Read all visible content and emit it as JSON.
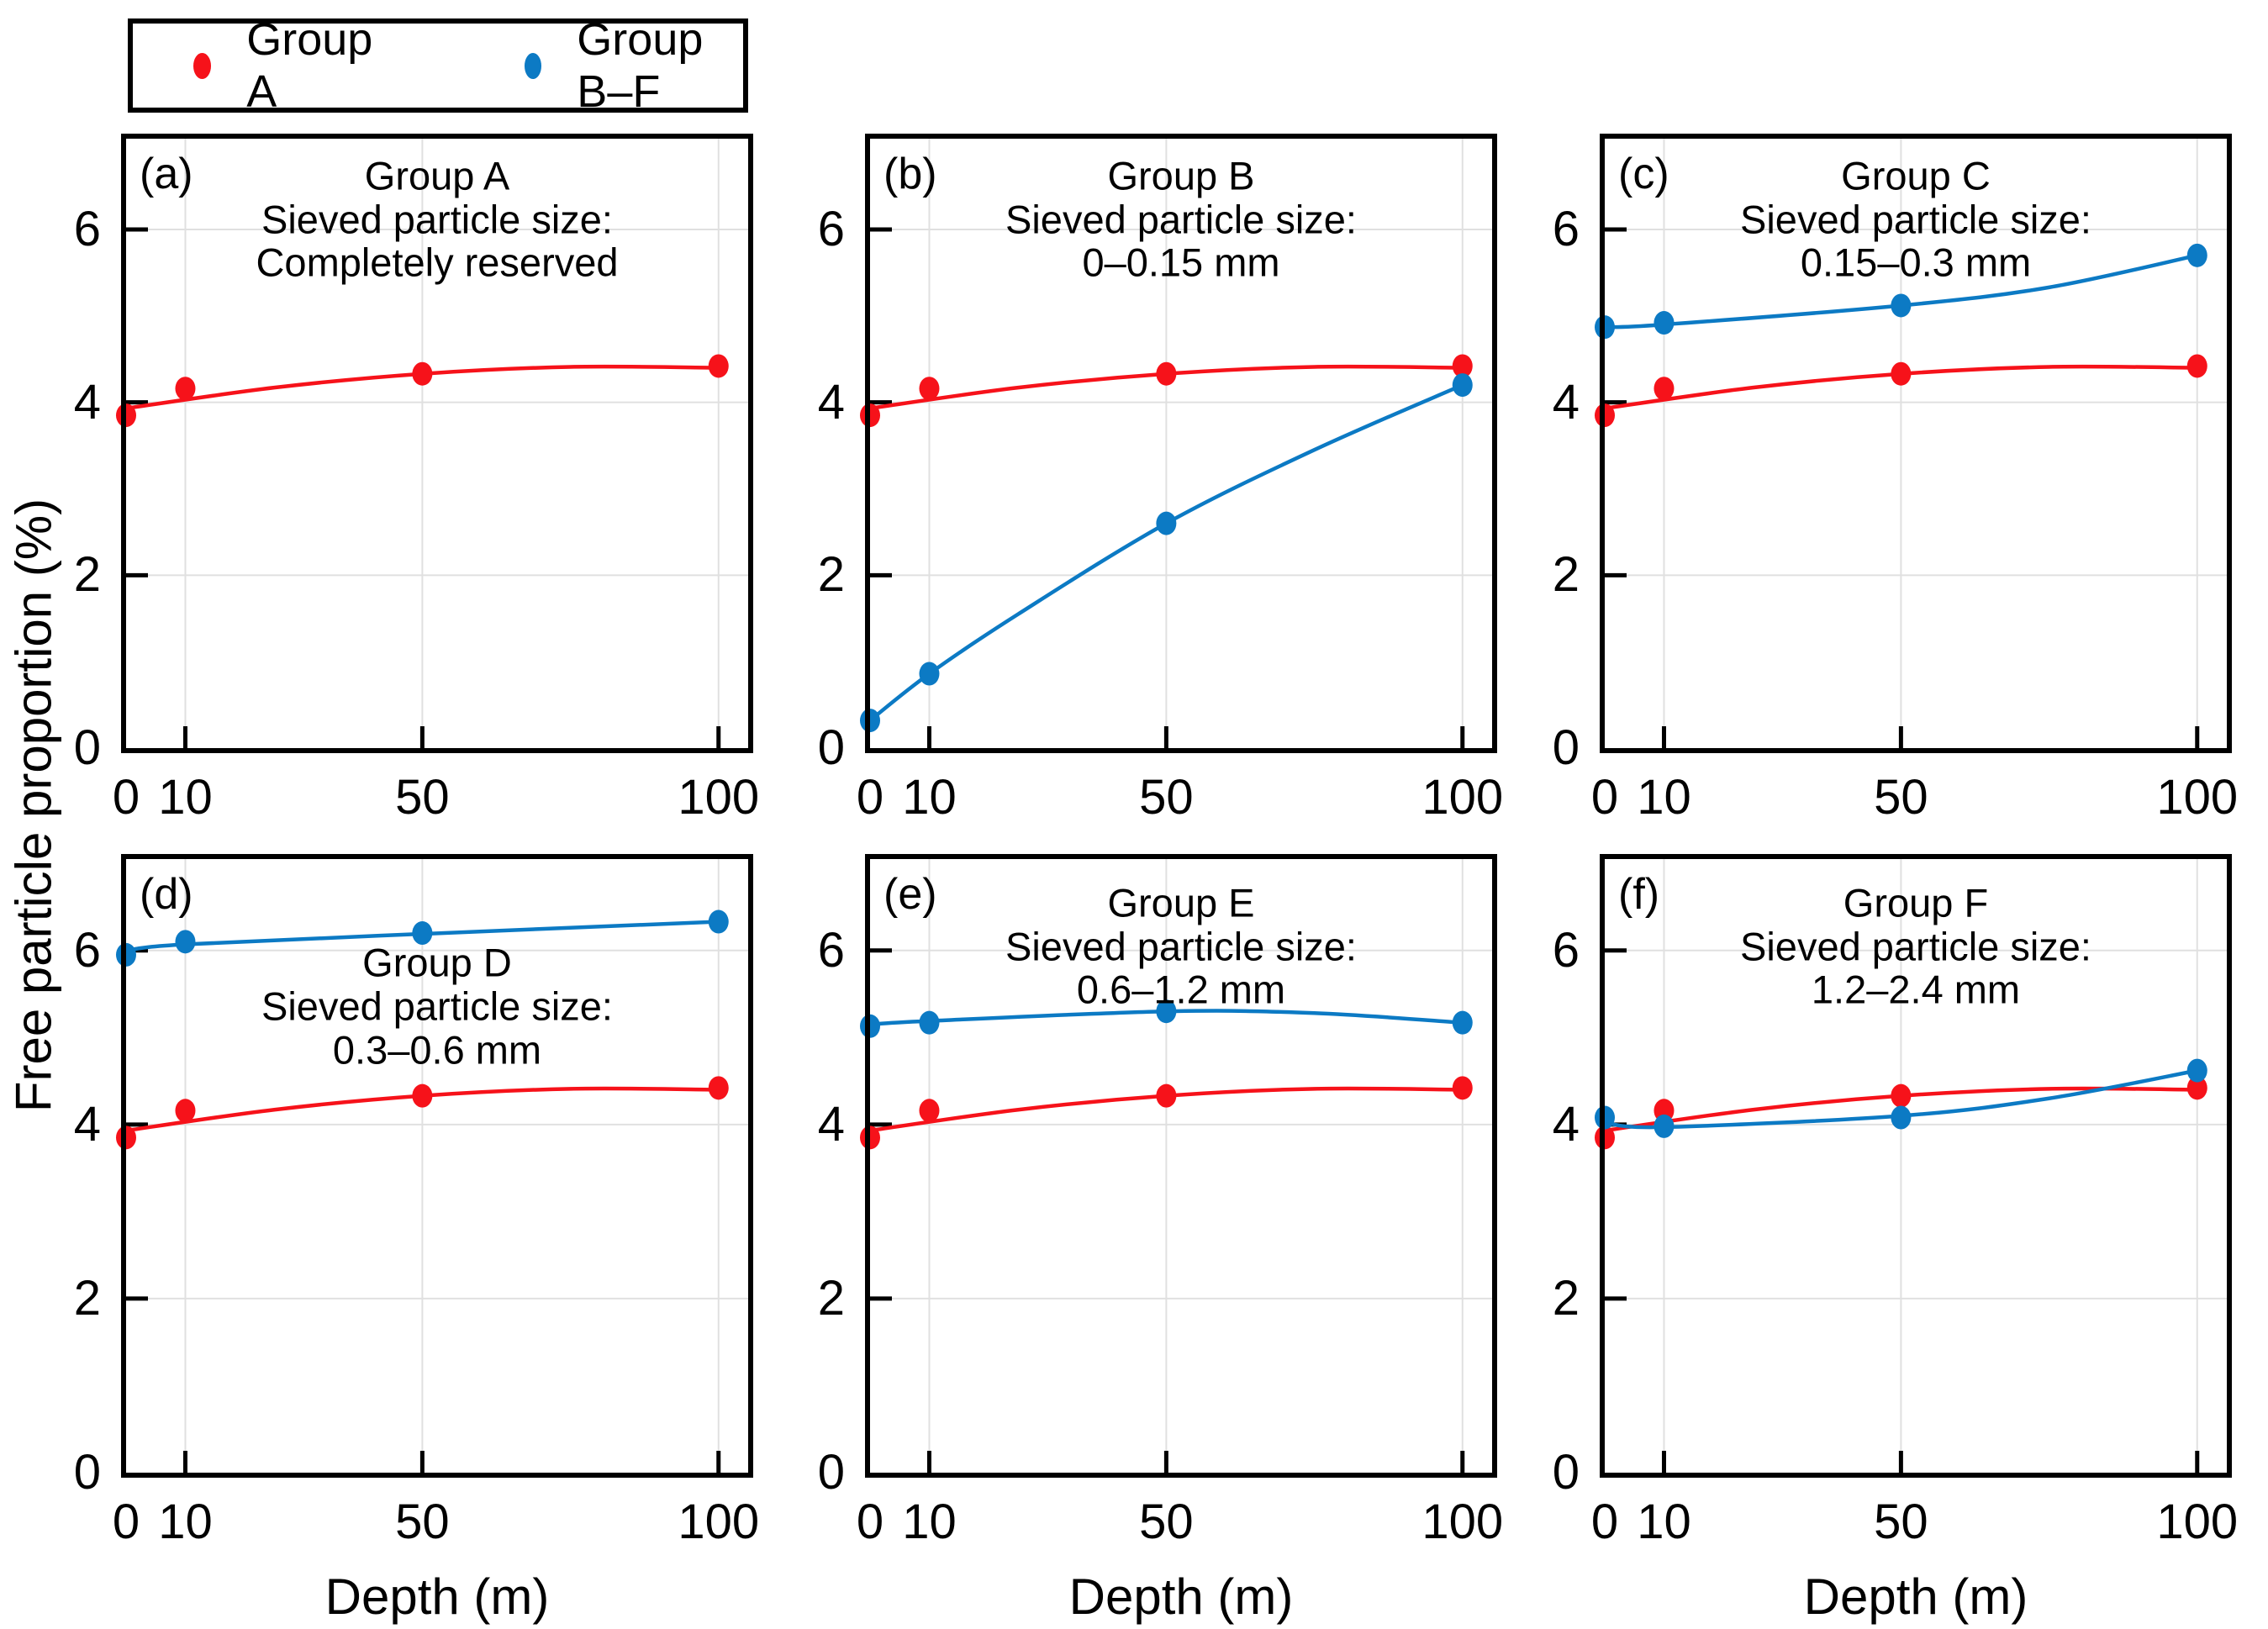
{
  "figure": {
    "background": "#ffffff",
    "y_axis_label": "Free particle proportion (%)",
    "x_axis_label": "Depth (m)"
  },
  "legend": {
    "items": [
      {
        "label": "Group A",
        "color": "#f6121a"
      },
      {
        "label": "Group B–F",
        "color": "#0c7ac4"
      }
    ]
  },
  "chart_data": {
    "type": "line",
    "x_label": "Depth (m)",
    "y_label": "Free particle proportion (%)",
    "x_ticks": [
      0,
      10,
      50,
      100
    ],
    "y_ticks": [
      0,
      2,
      4,
      6
    ],
    "x_range": [
      0,
      105
    ],
    "y_range": [
      0,
      7.05
    ],
    "grid": true,
    "legend_position": "top-left",
    "series_colors": {
      "group_a": "#f6121a",
      "group_bf": "#0c7ac4"
    },
    "panels": [
      {
        "id": "a",
        "label": "(a)",
        "row": 0,
        "col": 0,
        "title_lines": [
          "Group A",
          "Sieved particle size:",
          "Completely reserved"
        ],
        "title_first_line_y": 6.62,
        "title_line_step": 0.5,
        "x_axis_title": false,
        "series": [
          {
            "name": "Group A",
            "color_key": "group_a",
            "points": [
              [
                0,
                3.85
              ],
              [
                10,
                4.16
              ],
              [
                50,
                4.33
              ],
              [
                100,
                4.42
              ]
            ],
            "curve": [
              [
                0,
                3.93
              ],
              [
                25,
                4.17
              ],
              [
                50,
                4.33
              ],
              [
                75,
                4.41
              ],
              [
                100,
                4.4
              ]
            ]
          }
        ]
      },
      {
        "id": "b",
        "label": "(b)",
        "row": 0,
        "col": 1,
        "title_lines": [
          "Group B",
          "Sieved particle size:",
          "0–0.15 mm"
        ],
        "title_first_line_y": 6.62,
        "title_line_step": 0.5,
        "x_axis_title": false,
        "series": [
          {
            "name": "Group A",
            "color_key": "group_a",
            "points": [
              [
                0,
                3.85
              ],
              [
                10,
                4.16
              ],
              [
                50,
                4.33
              ],
              [
                100,
                4.42
              ]
            ],
            "curve": [
              [
                0,
                3.93
              ],
              [
                25,
                4.17
              ],
              [
                50,
                4.33
              ],
              [
                75,
                4.41
              ],
              [
                100,
                4.4
              ]
            ]
          },
          {
            "name": "Group B",
            "color_key": "group_bf",
            "points": [
              [
                0,
                0.32
              ],
              [
                10,
                0.86
              ],
              [
                50,
                2.6
              ],
              [
                100,
                4.2
              ]
            ],
            "curve": [
              [
                0,
                0.32
              ],
              [
                10,
                0.86
              ],
              [
                25,
                1.55
              ],
              [
                50,
                2.6
              ],
              [
                75,
                3.45
              ],
              [
                100,
                4.2
              ]
            ]
          }
        ]
      },
      {
        "id": "c",
        "label": "(c)",
        "row": 0,
        "col": 2,
        "title_lines": [
          "Group C",
          "Sieved particle size:",
          "0.15–0.3 mm"
        ],
        "title_first_line_y": 6.62,
        "title_line_step": 0.5,
        "x_axis_title": false,
        "series": [
          {
            "name": "Group A",
            "color_key": "group_a",
            "points": [
              [
                0,
                3.85
              ],
              [
                10,
                4.16
              ],
              [
                50,
                4.33
              ],
              [
                100,
                4.42
              ]
            ],
            "curve": [
              [
                0,
                3.93
              ],
              [
                25,
                4.17
              ],
              [
                50,
                4.33
              ],
              [
                75,
                4.41
              ],
              [
                100,
                4.4
              ]
            ]
          },
          {
            "name": "Group C",
            "color_key": "group_bf",
            "points": [
              [
                0,
                4.87
              ],
              [
                10,
                4.92
              ],
              [
                50,
                5.12
              ],
              [
                100,
                5.7
              ]
            ],
            "curve": [
              [
                0,
                4.87
              ],
              [
                10,
                4.9
              ],
              [
                50,
                5.12
              ],
              [
                75,
                5.33
              ],
              [
                100,
                5.7
              ]
            ]
          }
        ]
      },
      {
        "id": "d",
        "label": "(d)",
        "row": 1,
        "col": 0,
        "title_lines": [
          "Group D",
          "Sieved particle size:",
          "0.3–0.6 mm"
        ],
        "title_first_line_y": 5.86,
        "title_line_step": 0.5,
        "x_axis_title": true,
        "series": [
          {
            "name": "Group A",
            "color_key": "group_a",
            "points": [
              [
                0,
                3.85
              ],
              [
                10,
                4.16
              ],
              [
                50,
                4.33
              ],
              [
                100,
                4.42
              ]
            ],
            "curve": [
              [
                0,
                3.93
              ],
              [
                25,
                4.17
              ],
              [
                50,
                4.33
              ],
              [
                75,
                4.41
              ],
              [
                100,
                4.4
              ]
            ]
          },
          {
            "name": "Group D",
            "color_key": "group_bf",
            "points": [
              [
                0,
                5.95
              ],
              [
                10,
                6.1
              ],
              [
                50,
                6.2
              ],
              [
                100,
                6.33
              ]
            ],
            "curve": [
              [
                0,
                6.0
              ],
              [
                10,
                6.07
              ],
              [
                50,
                6.19
              ],
              [
                100,
                6.33
              ]
            ]
          }
        ]
      },
      {
        "id": "e",
        "label": "(e)",
        "row": 1,
        "col": 1,
        "title_lines": [
          "Group E",
          "Sieved particle size:",
          "0.6–1.2 mm"
        ],
        "title_first_line_y": 6.55,
        "title_line_step": 0.5,
        "x_axis_title": true,
        "series": [
          {
            "name": "Group A",
            "color_key": "group_a",
            "points": [
              [
                0,
                3.85
              ],
              [
                10,
                4.16
              ],
              [
                50,
                4.33
              ],
              [
                100,
                4.42
              ]
            ],
            "curve": [
              [
                0,
                3.93
              ],
              [
                25,
                4.17
              ],
              [
                50,
                4.33
              ],
              [
                75,
                4.41
              ],
              [
                100,
                4.4
              ]
            ]
          },
          {
            "name": "Group E",
            "color_key": "group_bf",
            "points": [
              [
                0,
                5.13
              ],
              [
                10,
                5.17
              ],
              [
                50,
                5.3
              ],
              [
                100,
                5.17
              ]
            ],
            "curve": [
              [
                0,
                5.15
              ],
              [
                10,
                5.19
              ],
              [
                50,
                5.3
              ],
              [
                75,
                5.28
              ],
              [
                100,
                5.17
              ]
            ]
          }
        ]
      },
      {
        "id": "f",
        "label": "(f)",
        "row": 1,
        "col": 2,
        "title_lines": [
          "Group F",
          "Sieved particle size:",
          "1.2–2.4 mm"
        ],
        "title_first_line_y": 6.55,
        "title_line_step": 0.5,
        "x_axis_title": true,
        "series": [
          {
            "name": "Group A",
            "color_key": "group_a",
            "points": [
              [
                0,
                3.85
              ],
              [
                10,
                4.16
              ],
              [
                50,
                4.33
              ],
              [
                100,
                4.42
              ]
            ],
            "curve": [
              [
                0,
                3.93
              ],
              [
                25,
                4.17
              ],
              [
                50,
                4.33
              ],
              [
                75,
                4.41
              ],
              [
                100,
                4.4
              ]
            ]
          },
          {
            "name": "Group F",
            "color_key": "group_bf",
            "points": [
              [
                0,
                4.08
              ],
              [
                10,
                3.98
              ],
              [
                50,
                4.08
              ],
              [
                100,
                4.62
              ]
            ],
            "curve": [
              [
                0,
                4.02
              ],
              [
                10,
                3.97
              ],
              [
                50,
                4.1
              ],
              [
                75,
                4.3
              ],
              [
                100,
                4.62
              ]
            ]
          }
        ]
      }
    ]
  }
}
